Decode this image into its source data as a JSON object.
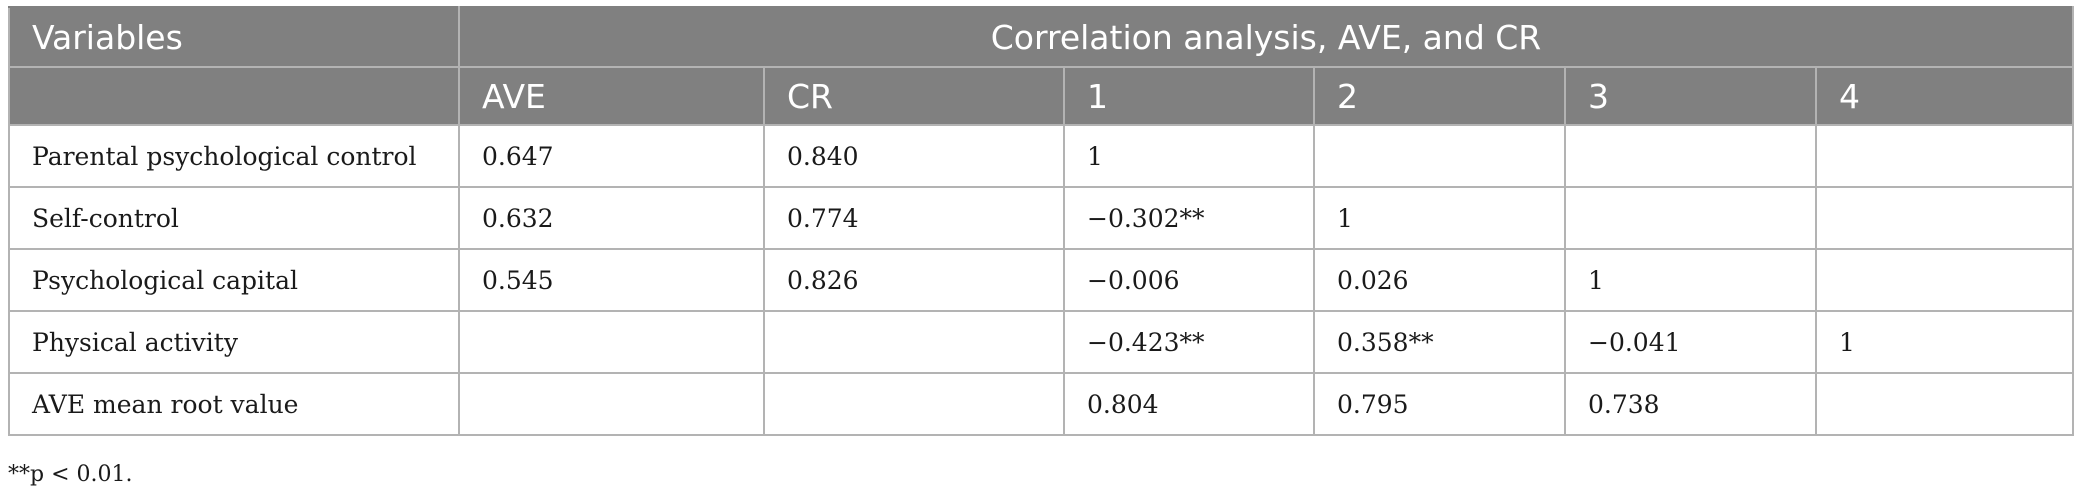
{
  "table": {
    "header_row1": {
      "variables_label": "Variables",
      "span_title": "Correlation analysis, AVE, and CR"
    },
    "header_row2": [
      "",
      "AVE",
      "CR",
      "1",
      "2",
      "3",
      "4"
    ],
    "rows": [
      [
        "Parental psychological control",
        "0.647",
        "0.840",
        "1",
        "",
        "",
        ""
      ],
      [
        "Self-control",
        "0.632",
        "0.774",
        "−0.302**",
        "1",
        "",
        ""
      ],
      [
        "Psychological capital",
        "0.545",
        "0.826",
        "−0.006",
        "0.026",
        "1",
        ""
      ],
      [
        "Physical activity",
        "",
        "",
        "−0.423**",
        "0.358**",
        "−0.041",
        "1"
      ],
      [
        "AVE mean root value",
        "",
        "",
        "0.804",
        "0.795",
        "0.738",
        ""
      ]
    ]
  },
  "footnote": "**p < 0.01."
}
